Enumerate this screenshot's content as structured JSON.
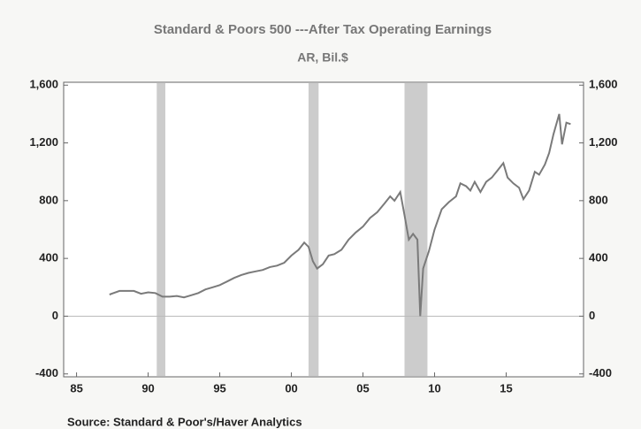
{
  "chart_data": {
    "type": "line",
    "title": "Standard & Poors 500 ---After Tax  Operating Earnings",
    "subtitle": "AR, Bil.$",
    "source": "Source:  Standard & Poor's/Haver Analytics",
    "x": [
      1987.3,
      1988,
      1989,
      1989.5,
      1990,
      1990.5,
      1991,
      1991.5,
      1992,
      1992.5,
      1993,
      1993.5,
      1994,
      1994.5,
      1995,
      1995.5,
      1996,
      1996.5,
      1997,
      1997.5,
      1998,
      1998.5,
      1999,
      1999.5,
      2000,
      2000.5,
      2000.9,
      2001.2,
      2001.5,
      2001.8,
      2002.2,
      2002.6,
      2003,
      2003.5,
      2004,
      2004.5,
      2005,
      2005.5,
      2006,
      2006.5,
      2006.9,
      2007.2,
      2007.6,
      2007.9,
      2008.2,
      2008.5,
      2008.8,
      2009.0,
      2009.2,
      2009.6,
      2010,
      2010.5,
      2011,
      2011.5,
      2011.8,
      2012.2,
      2012.5,
      2012.8,
      2013.2,
      2013.6,
      2014,
      2014.4,
      2014.8,
      2015.1,
      2015.5,
      2015.9,
      2016.2,
      2016.6,
      2017,
      2017.3,
      2017.7,
      2018,
      2018.3,
      2018.7,
      2018.9,
      2019.2,
      2019.5
    ],
    "series": [
      {
        "name": "Operating Earnings",
        "color": "#7a7a7a",
        "values": [
          150,
          175,
          175,
          155,
          165,
          160,
          135,
          135,
          140,
          130,
          145,
          160,
          185,
          200,
          215,
          240,
          265,
          285,
          300,
          310,
          320,
          340,
          350,
          370,
          420,
          460,
          510,
          480,
          380,
          330,
          360,
          420,
          430,
          460,
          530,
          580,
          620,
          680,
          720,
          780,
          830,
          800,
          860,
          700,
          530,
          570,
          530,
          0,
          330,
          450,
          600,
          740,
          790,
          830,
          920,
          900,
          870,
          930,
          860,
          930,
          960,
          1010,
          1060,
          960,
          920,
          890,
          810,
          870,
          1000,
          980,
          1050,
          1130,
          1260,
          1400,
          1190,
          1340,
          1330
        ]
      }
    ],
    "recessions": [
      [
        1990.6,
        1991.2
      ],
      [
        2001.2,
        2001.9
      ],
      [
        2007.9,
        2009.5
      ]
    ],
    "recession_color": "#cccccc",
    "xlim": [
      1984.1,
      2020.4
    ],
    "xticks": [
      {
        "value": 1985,
        "label": "85"
      },
      {
        "value": 1990,
        "label": "90"
      },
      {
        "value": 1995,
        "label": "95"
      },
      {
        "value": 2000,
        "label": "00"
      },
      {
        "value": 2005,
        "label": "05"
      },
      {
        "value": 2010,
        "label": "10"
      },
      {
        "value": 2015,
        "label": "15"
      }
    ],
    "ylim": [
      -420,
      1620
    ],
    "yticks": [
      {
        "value": -400,
        "label": "-400"
      },
      0,
      400,
      800,
      {
        "value": 1200,
        "label": "1,200"
      },
      {
        "value": 1600,
        "label": "1,600"
      }
    ],
    "y2lim": [
      -420,
      1620
    ],
    "y2ticks": [
      {
        "value": -400,
        "label": "-400"
      },
      0,
      400,
      800,
      {
        "value": 1200,
        "label": "1,200"
      },
      {
        "value": 1600,
        "label": "1,600"
      }
    ]
  }
}
